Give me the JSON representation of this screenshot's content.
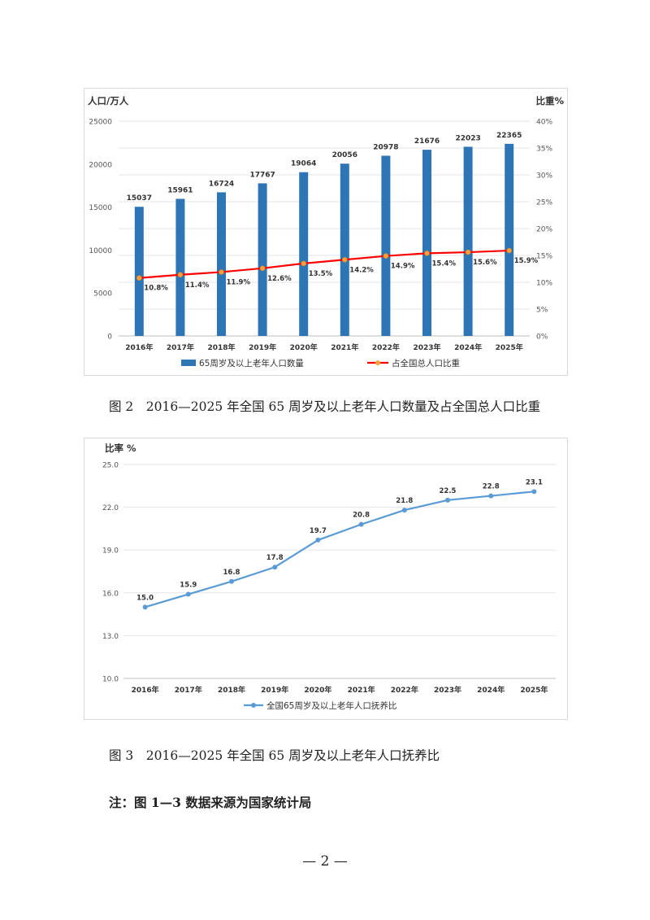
{
  "chart_data": [
    {
      "type": "bar+line",
      "ylabel_left": "人口/万人",
      "ylabel_right": "比重%",
      "categories": [
        "2016年",
        "2017年",
        "2018年",
        "2019年",
        "2020年",
        "2021年",
        "2022年",
        "2023年",
        "2024年",
        "2025年"
      ],
      "ylim_left": [
        0,
        25000
      ],
      "yticks_left": [
        "0",
        "5000",
        "10000",
        "15000",
        "20000",
        "25000"
      ],
      "ylim_right": [
        0,
        40
      ],
      "yticks_right": [
        "0%",
        "5%",
        "10%",
        "15%",
        "20%",
        "25%",
        "30%",
        "35%",
        "40%"
      ],
      "series": [
        {
          "name": "65周岁及以上老年人口数量",
          "kind": "bar",
          "axis": "left",
          "values": [
            15037,
            15961,
            16724,
            17767,
            19064,
            20056,
            20978,
            21676,
            22023,
            22365
          ],
          "labels": [
            "15037",
            "15961",
            "16724",
            "17767",
            "19064",
            "20056",
            "20978",
            "21676",
            "22023",
            "22365"
          ],
          "color": "#2e75b6"
        },
        {
          "name": "占全国总人口比重",
          "kind": "line",
          "axis": "right",
          "values": [
            10.8,
            11.4,
            11.9,
            12.6,
            13.5,
            14.2,
            14.9,
            15.4,
            15.6,
            15.9
          ],
          "labels": [
            "10.8%",
            "11.4%",
            "11.9%",
            "12.6%",
            "13.5%",
            "14.2%",
            "14.9%",
            "15.4%",
            "15.6%",
            "15.9%"
          ],
          "color": "#ff0000",
          "marker_color": "#f4a23b"
        }
      ],
      "grid": "horizontal",
      "legend": "bottom"
    },
    {
      "type": "line",
      "ylabel": "比率 %",
      "categories": [
        "2016年",
        "2017年",
        "2018年",
        "2019年",
        "2020年",
        "2021年",
        "2022年",
        "2023年",
        "2024年",
        "2025年"
      ],
      "ylim": [
        10,
        25
      ],
      "yticks": [
        "10.0",
        "13.0",
        "16.0",
        "19.0",
        "22.0",
        "25.0"
      ],
      "series": [
        {
          "name": "全国65周岁及以上老年人口抚养比",
          "values": [
            15.0,
            15.9,
            16.8,
            17.8,
            19.7,
            20.8,
            21.8,
            22.5,
            22.8,
            23.1
          ],
          "labels": [
            "15.0",
            "15.9",
            "16.8",
            "17.8",
            "19.7",
            "20.8",
            "21.8",
            "22.5",
            "22.8",
            "23.1"
          ],
          "color": "#5b9bd5"
        }
      ],
      "grid": "horizontal",
      "legend": "bottom"
    }
  ],
  "captions": {
    "figure2": "图 2　2016—2025 年全国 65 周岁及以上老年人口数量及占全国总人口比重",
    "figure3": "图 3　2016—2025 年全国 65 周岁及以上老年人口抚养比"
  },
  "note": "注：图 1—3 数据来源为国家统计局",
  "page_number": "— 2 —"
}
